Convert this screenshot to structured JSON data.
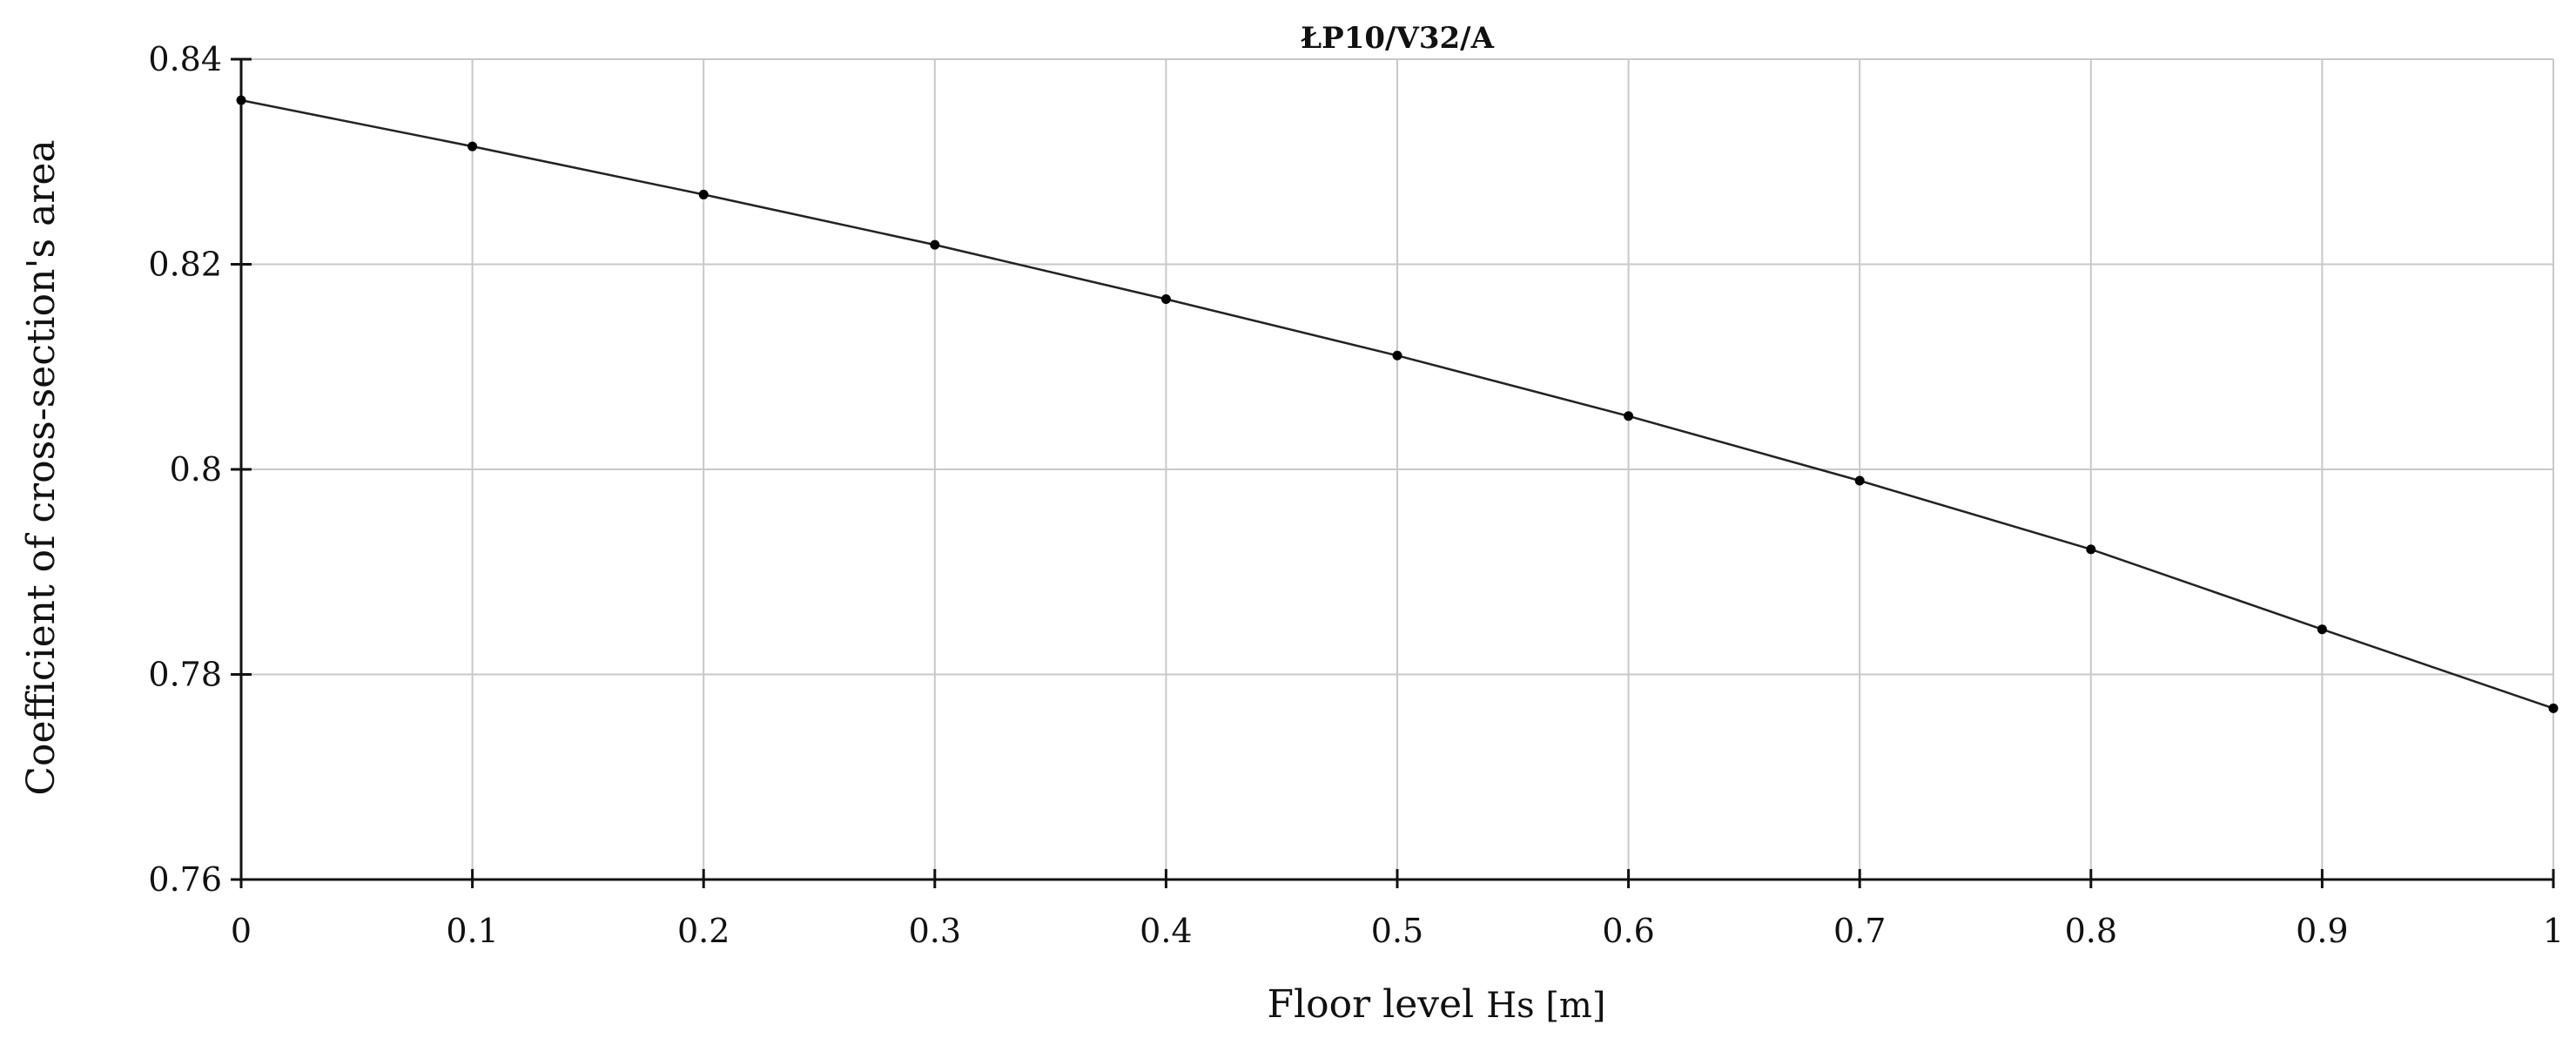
{
  "chart_data": {
    "type": "line",
    "title": "ŁP10/V32/A",
    "xlabel_main": "Floor level",
    "xlabel_unit": "Hs [m]",
    "ylabel": "Coefficient of cross-section's area",
    "xlim": [
      0,
      1
    ],
    "ylim": [
      0.76,
      0.84
    ],
    "x_ticks": [
      0,
      0.1,
      0.2,
      0.3,
      0.4,
      0.5,
      0.6,
      0.7,
      0.8,
      0.9,
      1
    ],
    "x_tick_labels": [
      "0",
      "0.1",
      "0.2",
      "0.3",
      "0.4",
      "0.5",
      "0.6",
      "0.7",
      "0.8",
      "0.9",
      "1"
    ],
    "y_ticks": [
      0.76,
      0.78,
      0.8,
      0.82,
      0.84
    ],
    "y_tick_labels": [
      "0.76",
      "0.78",
      "0.8",
      "0.82",
      "0.84"
    ],
    "grid": true,
    "legend": "none",
    "series": [
      {
        "x": [
          0,
          0.1,
          0.2,
          0.3,
          0.4,
          0.5,
          0.6,
          0.7,
          0.8,
          0.9,
          1
        ],
        "values": [
          0.836,
          0.8315,
          0.8268,
          0.8219,
          0.8166,
          0.8111,
          0.8052,
          0.7989,
          0.7922,
          0.7844,
          0.7767
        ],
        "color": "#222222",
        "marker": "dot"
      }
    ]
  }
}
